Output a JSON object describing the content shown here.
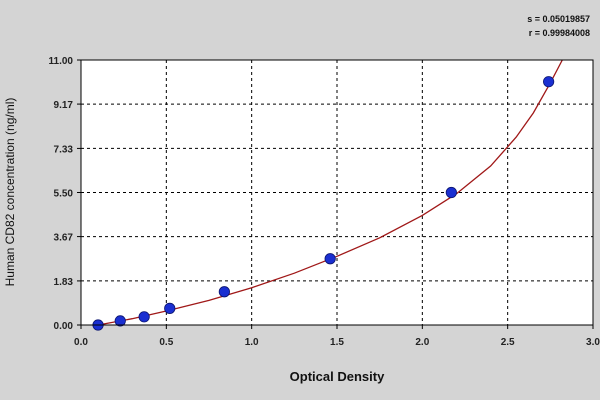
{
  "chart_data": {
    "type": "scatter",
    "title": "",
    "xlabel": "Optical Density",
    "ylabel": "Human CD82 concentration (ng/ml)",
    "xlim": [
      0.0,
      3.0
    ],
    "ylim": [
      0.0,
      11.0
    ],
    "x_ticks": [
      "0.0",
      "0.5",
      "1.0",
      "1.5",
      "2.0",
      "2.5",
      "3.0"
    ],
    "y_ticks": [
      "0.00",
      "1.83",
      "3.67",
      "5.50",
      "7.33",
      "9.17",
      "11.00"
    ],
    "grid": true,
    "series": [
      {
        "type": "scatter",
        "color": "#1a2fd1",
        "points": [
          {
            "x": 0.1,
            "y": 0.0
          },
          {
            "x": 0.23,
            "y": 0.17
          },
          {
            "x": 0.37,
            "y": 0.34
          },
          {
            "x": 0.52,
            "y": 0.69
          },
          {
            "x": 0.84,
            "y": 1.38
          },
          {
            "x": 1.46,
            "y": 2.75
          },
          {
            "x": 2.17,
            "y": 5.5
          },
          {
            "x": 2.74,
            "y": 10.1
          }
        ]
      },
      {
        "type": "line",
        "color": "#a01818",
        "fit": "exponential",
        "points": [
          {
            "x": 0.1,
            "y": 0.0
          },
          {
            "x": 0.3,
            "y": 0.26
          },
          {
            "x": 0.5,
            "y": 0.58
          },
          {
            "x": 0.75,
            "y": 1.02
          },
          {
            "x": 1.0,
            "y": 1.55
          },
          {
            "x": 1.25,
            "y": 2.15
          },
          {
            "x": 1.5,
            "y": 2.85
          },
          {
            "x": 1.75,
            "y": 3.62
          },
          {
            "x": 2.0,
            "y": 4.55
          },
          {
            "x": 2.2,
            "y": 5.45
          },
          {
            "x": 2.4,
            "y": 6.6
          },
          {
            "x": 2.55,
            "y": 7.8
          },
          {
            "x": 2.65,
            "y": 8.8
          },
          {
            "x": 2.75,
            "y": 10.05
          },
          {
            "x": 2.82,
            "y": 11.0
          }
        ]
      }
    ],
    "stats": {
      "line1": "s = 0.05019857",
      "line2": "r = 0.99984008"
    },
    "colors": {
      "background": "#d4d4d4",
      "plot_area": "#ffffff",
      "grid": "#000000",
      "marker_fill": "#1a2fd1",
      "curve": "#a01818"
    }
  }
}
